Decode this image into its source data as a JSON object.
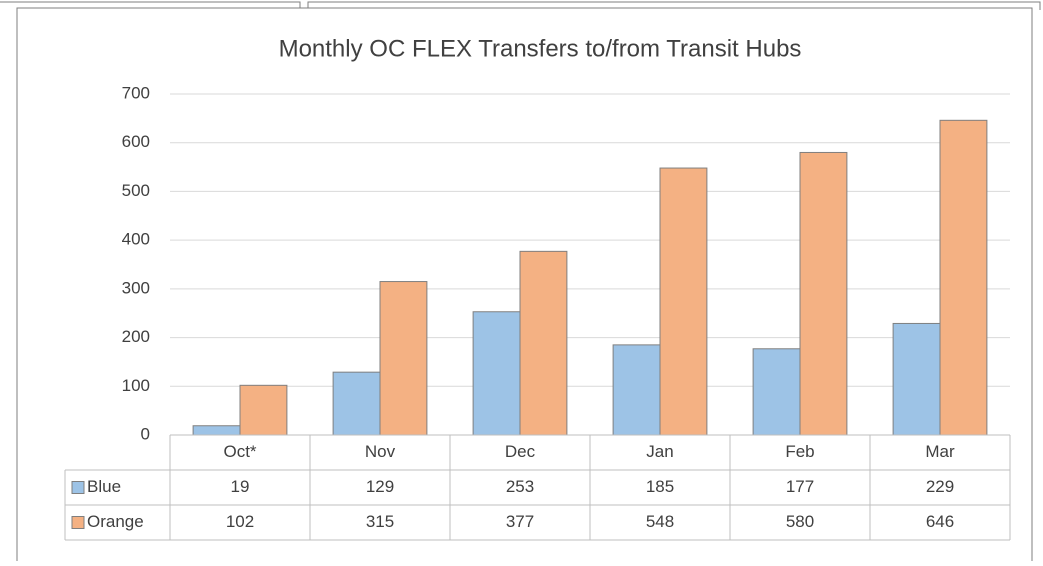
{
  "chart_data": {
    "type": "bar",
    "title": "Monthly OC FLEX Transfers to/from Transit Hubs",
    "categories": [
      "Oct*",
      "Nov",
      "Dec",
      "Jan",
      "Feb",
      "Mar"
    ],
    "series": [
      {
        "name": "Blue",
        "color": "#9dc3e6",
        "values": [
          19,
          129,
          253,
          185,
          177,
          229
        ]
      },
      {
        "name": "Orange",
        "color": "#f4b183",
        "values": [
          102,
          315,
          377,
          548,
          580,
          646
        ]
      }
    ],
    "ylim": [
      0,
      700
    ],
    "yticks": [
      0,
      100,
      200,
      300,
      400,
      500,
      600,
      700
    ],
    "grid": true,
    "data_table": true
  }
}
